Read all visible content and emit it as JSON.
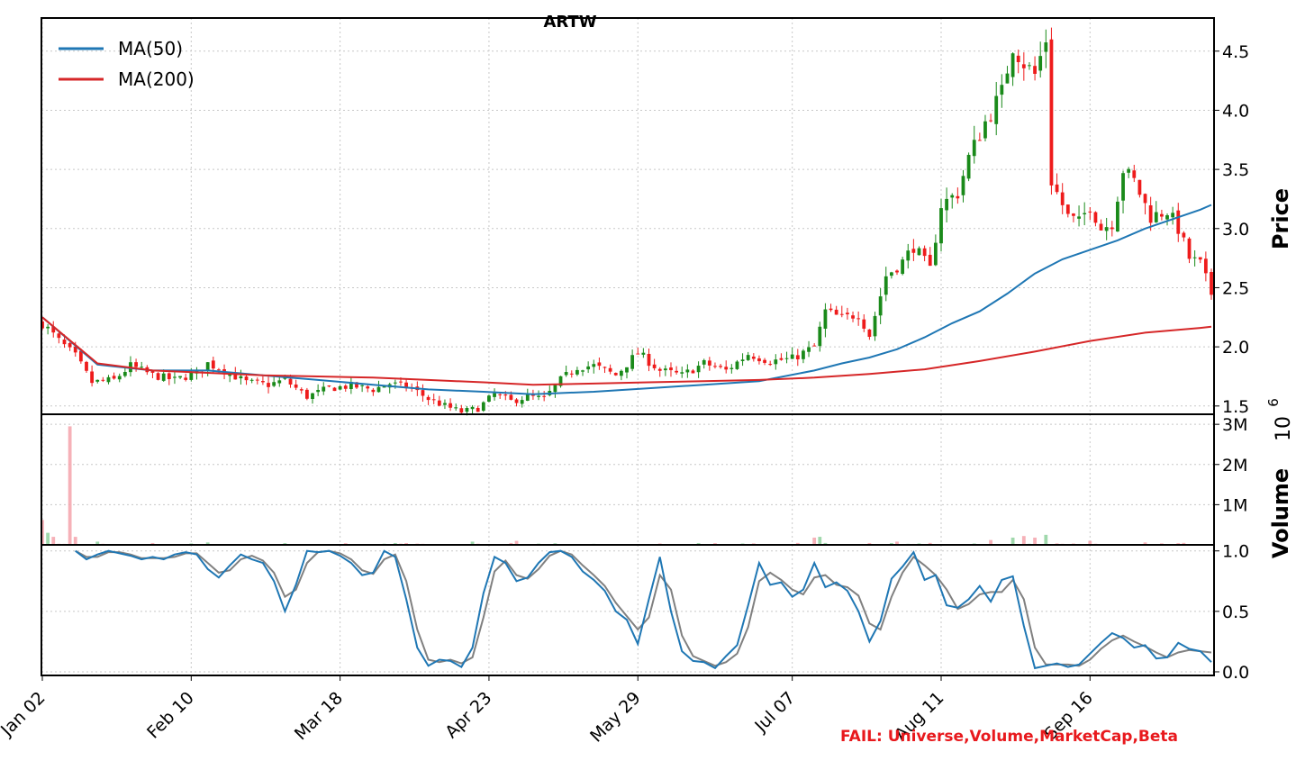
{
  "chart_data": {
    "title": "ARTW",
    "type": "candlestick",
    "x_ticks": [
      "Jan 02",
      "Feb 10",
      "Mar 18",
      "Apr 23",
      "May 29",
      "Jul 07",
      "Aug 11",
      "Sep 16"
    ],
    "price_panel": {
      "ylabel": "Price",
      "ylim": [
        1.43,
        4.78
      ],
      "y_ticks": [
        "1.5",
        "2.0",
        "2.5",
        "3.0",
        "3.5",
        "4.0",
        "4.5"
      ],
      "legend": [
        {
          "label": "MA(50)",
          "color": "#1f77b4"
        },
        {
          "label": "MA(200)",
          "color": "#d62728"
        }
      ],
      "legend_position": "top-left",
      "colors": {
        "up": "#1a8a1a",
        "down": "#ee1b1b"
      },
      "close_anchors": [
        [
          0,
          2.2
        ],
        [
          3,
          2.05
        ],
        [
          6,
          1.92
        ],
        [
          9,
          1.7
        ],
        [
          13,
          1.72
        ],
        [
          16,
          1.84
        ],
        [
          20,
          1.76
        ],
        [
          24,
          1.72
        ],
        [
          28,
          1.78
        ],
        [
          30,
          1.86
        ],
        [
          33,
          1.8
        ],
        [
          37,
          1.7
        ],
        [
          41,
          1.68
        ],
        [
          44,
          1.72
        ],
        [
          48,
          1.58
        ],
        [
          52,
          1.65
        ],
        [
          56,
          1.67
        ],
        [
          60,
          1.64
        ],
        [
          63,
          1.69
        ],
        [
          67,
          1.65
        ],
        [
          70,
          1.56
        ],
        [
          73,
          1.5
        ],
        [
          76,
          1.45
        ],
        [
          79,
          1.48
        ],
        [
          82,
          1.6
        ],
        [
          85,
          1.54
        ],
        [
          88,
          1.58
        ],
        [
          91,
          1.56
        ],
        [
          94,
          1.72
        ],
        [
          97,
          1.83
        ],
        [
          100,
          1.84
        ],
        [
          104,
          1.76
        ],
        [
          108,
          1.95
        ],
        [
          112,
          1.8
        ],
        [
          116,
          1.76
        ],
        [
          120,
          1.86
        ],
        [
          124,
          1.8
        ],
        [
          128,
          1.94
        ],
        [
          132,
          1.88
        ],
        [
          136,
          1.9
        ],
        [
          140,
          2.0
        ],
        [
          142,
          2.3
        ],
        [
          145,
          2.24
        ],
        [
          148,
          2.28
        ],
        [
          150,
          2.1
        ],
        [
          153,
          2.6
        ],
        [
          156,
          2.72
        ],
        [
          158,
          2.85
        ],
        [
          161,
          2.65
        ],
        [
          163,
          3.2
        ],
        [
          166,
          3.3
        ],
        [
          168,
          3.6
        ],
        [
          171,
          3.9
        ],
        [
          174,
          4.15
        ],
        [
          176,
          4.55
        ],
        [
          178,
          4.4
        ],
        [
          180,
          4.3
        ],
        [
          182,
          4.6
        ],
        [
          183,
          3.4
        ],
        [
          186,
          3.1
        ],
        [
          188,
          3.05
        ],
        [
          190,
          3.2
        ],
        [
          192,
          3.0
        ],
        [
          194,
          3.05
        ],
        [
          196,
          3.5
        ],
        [
          198,
          3.4
        ],
        [
          201,
          3.1
        ],
        [
          204,
          3.15
        ],
        [
          206,
          3.0
        ],
        [
          208,
          2.75
        ],
        [
          210,
          2.7
        ],
        [
          212,
          2.45
        ]
      ],
      "ma50": [
        [
          0,
          2.25
        ],
        [
          10,
          1.85
        ],
        [
          20,
          1.8
        ],
        [
          30,
          1.8
        ],
        [
          40,
          1.76
        ],
        [
          50,
          1.72
        ],
        [
          60,
          1.68
        ],
        [
          70,
          1.64
        ],
        [
          80,
          1.62
        ],
        [
          89,
          1.6
        ],
        [
          100,
          1.62
        ],
        [
          110,
          1.65
        ],
        [
          120,
          1.68
        ],
        [
          130,
          1.71
        ],
        [
          140,
          1.8
        ],
        [
          145,
          1.86
        ],
        [
          150,
          1.91
        ],
        [
          155,
          1.98
        ],
        [
          160,
          2.08
        ],
        [
          165,
          2.2
        ],
        [
          170,
          2.3
        ],
        [
          175,
          2.45
        ],
        [
          180,
          2.62
        ],
        [
          185,
          2.74
        ],
        [
          190,
          2.82
        ],
        [
          195,
          2.9
        ],
        [
          200,
          3.0
        ],
        [
          205,
          3.08
        ],
        [
          210,
          3.16
        ],
        [
          212,
          3.2
        ]
      ],
      "ma200": [
        [
          0,
          2.25
        ],
        [
          10,
          1.86
        ],
        [
          20,
          1.8
        ],
        [
          30,
          1.78
        ],
        [
          40,
          1.76
        ],
        [
          50,
          1.75
        ],
        [
          60,
          1.74
        ],
        [
          70,
          1.72
        ],
        [
          80,
          1.7
        ],
        [
          89,
          1.68
        ],
        [
          100,
          1.69
        ],
        [
          110,
          1.7
        ],
        [
          120,
          1.71
        ],
        [
          130,
          1.72
        ],
        [
          140,
          1.74
        ],
        [
          150,
          1.77
        ],
        [
          160,
          1.81
        ],
        [
          170,
          1.88
        ],
        [
          180,
          1.96
        ],
        [
          190,
          2.05
        ],
        [
          200,
          2.12
        ],
        [
          210,
          2.16
        ],
        [
          212,
          2.17
        ]
      ]
    },
    "volume_panel": {
      "ylabel": "Volume",
      "scale_label": "10",
      "scale_exponent": "6",
      "ylim": [
        0,
        3.25
      ],
      "y_ticks": [
        "1M",
        "2M",
        "3M"
      ],
      "spikes": [
        [
          0,
          0.62
        ],
        [
          1,
          0.3
        ],
        [
          2,
          0.2
        ],
        [
          5,
          2.95
        ],
        [
          6,
          0.2
        ],
        [
          10,
          0.08
        ],
        [
          30,
          0.06
        ],
        [
          78,
          0.08
        ],
        [
          86,
          0.1
        ],
        [
          140,
          0.18
        ],
        [
          141,
          0.2
        ],
        [
          155,
          0.08
        ],
        [
          172,
          0.12
        ],
        [
          176,
          0.18
        ],
        [
          178,
          0.22
        ],
        [
          180,
          0.18
        ],
        [
          182,
          0.25
        ],
        [
          190,
          0.1
        ],
        [
          200,
          0.06
        ]
      ]
    },
    "oscillator_panel": {
      "ylim": [
        -0.03,
        1.05
      ],
      "y_ticks": [
        "0.0",
        "0.5",
        "1.0"
      ],
      "colors": {
        "fast": "#1f77b4",
        "slow": "#808080"
      },
      "fast": [
        [
          6,
          1.0
        ],
        [
          8,
          0.93
        ],
        [
          10,
          0.97
        ],
        [
          12,
          1.0
        ],
        [
          14,
          0.98
        ],
        [
          16,
          0.96
        ],
        [
          18,
          0.93
        ],
        [
          20,
          0.95
        ],
        [
          22,
          0.93
        ],
        [
          24,
          0.97
        ],
        [
          26,
          0.99
        ],
        [
          28,
          0.97
        ],
        [
          30,
          0.85
        ],
        [
          32,
          0.78
        ],
        [
          34,
          0.88
        ],
        [
          36,
          0.97
        ],
        [
          38,
          0.93
        ],
        [
          40,
          0.9
        ],
        [
          42,
          0.75
        ],
        [
          44,
          0.5
        ],
        [
          46,
          0.72
        ],
        [
          48,
          1.0
        ],
        [
          50,
          0.99
        ],
        [
          52,
          1.0
        ],
        [
          54,
          0.96
        ],
        [
          56,
          0.9
        ],
        [
          58,
          0.8
        ],
        [
          60,
          0.82
        ],
        [
          62,
          1.0
        ],
        [
          64,
          0.95
        ],
        [
          66,
          0.6
        ],
        [
          68,
          0.2
        ],
        [
          70,
          0.05
        ],
        [
          72,
          0.1
        ],
        [
          74,
          0.09
        ],
        [
          76,
          0.04
        ],
        [
          78,
          0.2
        ],
        [
          80,
          0.65
        ],
        [
          82,
          0.95
        ],
        [
          84,
          0.9
        ],
        [
          86,
          0.75
        ],
        [
          88,
          0.78
        ],
        [
          90,
          0.9
        ],
        [
          92,
          0.99
        ],
        [
          94,
          1.0
        ],
        [
          96,
          0.95
        ],
        [
          98,
          0.83
        ],
        [
          100,
          0.76
        ],
        [
          102,
          0.67
        ],
        [
          104,
          0.5
        ],
        [
          106,
          0.43
        ],
        [
          108,
          0.23
        ],
        [
          110,
          0.6
        ],
        [
          112,
          0.95
        ],
        [
          114,
          0.5
        ],
        [
          116,
          0.17
        ],
        [
          118,
          0.09
        ],
        [
          120,
          0.08
        ],
        [
          122,
          0.03
        ],
        [
          124,
          0.13
        ],
        [
          126,
          0.22
        ],
        [
          128,
          0.55
        ],
        [
          130,
          0.9
        ],
        [
          132,
          0.72
        ],
        [
          134,
          0.74
        ],
        [
          136,
          0.62
        ],
        [
          138,
          0.68
        ],
        [
          140,
          0.9
        ],
        [
          142,
          0.7
        ],
        [
          144,
          0.74
        ],
        [
          146,
          0.67
        ],
        [
          148,
          0.5
        ],
        [
          150,
          0.25
        ],
        [
          152,
          0.42
        ],
        [
          154,
          0.77
        ],
        [
          156,
          0.87
        ],
        [
          158,
          0.99
        ],
        [
          160,
          0.76
        ],
        [
          162,
          0.8
        ],
        [
          164,
          0.55
        ],
        [
          166,
          0.53
        ],
        [
          168,
          0.6
        ],
        [
          170,
          0.71
        ],
        [
          172,
          0.58
        ],
        [
          174,
          0.76
        ],
        [
          176,
          0.79
        ],
        [
          178,
          0.38
        ],
        [
          180,
          0.03
        ],
        [
          182,
          0.05
        ],
        [
          184,
          0.07
        ],
        [
          186,
          0.04
        ],
        [
          188,
          0.06
        ],
        [
          190,
          0.15
        ],
        [
          192,
          0.24
        ],
        [
          194,
          0.32
        ],
        [
          196,
          0.28
        ],
        [
          198,
          0.2
        ],
        [
          200,
          0.22
        ],
        [
          202,
          0.11
        ],
        [
          204,
          0.12
        ],
        [
          206,
          0.24
        ],
        [
          208,
          0.19
        ],
        [
          210,
          0.17
        ],
        [
          212,
          0.08
        ]
      ],
      "slow": [
        [
          6,
          1.0
        ],
        [
          8,
          0.95
        ],
        [
          10,
          0.95
        ],
        [
          12,
          0.99
        ],
        [
          14,
          0.99
        ],
        [
          16,
          0.97
        ],
        [
          18,
          0.94
        ],
        [
          20,
          0.94
        ],
        [
          22,
          0.94
        ],
        [
          24,
          0.95
        ],
        [
          26,
          0.98
        ],
        [
          28,
          0.98
        ],
        [
          30,
          0.9
        ],
        [
          32,
          0.82
        ],
        [
          34,
          0.84
        ],
        [
          36,
          0.93
        ],
        [
          38,
          0.96
        ],
        [
          40,
          0.92
        ],
        [
          42,
          0.82
        ],
        [
          44,
          0.62
        ],
        [
          46,
          0.68
        ],
        [
          48,
          0.9
        ],
        [
          50,
          0.99
        ],
        [
          52,
          1.0
        ],
        [
          54,
          0.98
        ],
        [
          56,
          0.93
        ],
        [
          58,
          0.84
        ],
        [
          60,
          0.81
        ],
        [
          62,
          0.93
        ],
        [
          64,
          0.97
        ],
        [
          66,
          0.75
        ],
        [
          68,
          0.35
        ],
        [
          70,
          0.1
        ],
        [
          72,
          0.08
        ],
        [
          74,
          0.1
        ],
        [
          76,
          0.07
        ],
        [
          78,
          0.12
        ],
        [
          80,
          0.45
        ],
        [
          82,
          0.83
        ],
        [
          84,
          0.92
        ],
        [
          86,
          0.8
        ],
        [
          88,
          0.77
        ],
        [
          90,
          0.85
        ],
        [
          92,
          0.96
        ],
        [
          94,
          1.0
        ],
        [
          96,
          0.97
        ],
        [
          98,
          0.88
        ],
        [
          100,
          0.8
        ],
        [
          102,
          0.71
        ],
        [
          104,
          0.57
        ],
        [
          106,
          0.46
        ],
        [
          108,
          0.35
        ],
        [
          110,
          0.45
        ],
        [
          112,
          0.8
        ],
        [
          114,
          0.68
        ],
        [
          116,
          0.3
        ],
        [
          118,
          0.13
        ],
        [
          120,
          0.09
        ],
        [
          122,
          0.05
        ],
        [
          124,
          0.08
        ],
        [
          126,
          0.15
        ],
        [
          128,
          0.37
        ],
        [
          130,
          0.75
        ],
        [
          132,
          0.82
        ],
        [
          134,
          0.76
        ],
        [
          136,
          0.68
        ],
        [
          138,
          0.64
        ],
        [
          140,
          0.78
        ],
        [
          142,
          0.8
        ],
        [
          144,
          0.72
        ],
        [
          146,
          0.7
        ],
        [
          148,
          0.63
        ],
        [
          150,
          0.4
        ],
        [
          152,
          0.35
        ],
        [
          154,
          0.62
        ],
        [
          156,
          0.82
        ],
        [
          158,
          0.95
        ],
        [
          160,
          0.88
        ],
        [
          162,
          0.8
        ],
        [
          164,
          0.68
        ],
        [
          166,
          0.52
        ],
        [
          168,
          0.56
        ],
        [
          170,
          0.64
        ],
        [
          172,
          0.66
        ],
        [
          174,
          0.66
        ],
        [
          176,
          0.76
        ],
        [
          178,
          0.6
        ],
        [
          180,
          0.2
        ],
        [
          182,
          0.06
        ],
        [
          184,
          0.06
        ],
        [
          186,
          0.06
        ],
        [
          188,
          0.05
        ],
        [
          190,
          0.1
        ],
        [
          192,
          0.19
        ],
        [
          194,
          0.26
        ],
        [
          196,
          0.3
        ],
        [
          198,
          0.25
        ],
        [
          200,
          0.21
        ],
        [
          202,
          0.16
        ],
        [
          204,
          0.12
        ],
        [
          206,
          0.16
        ],
        [
          208,
          0.18
        ],
        [
          210,
          0.17
        ],
        [
          212,
          0.16
        ]
      ]
    },
    "footer_note": "FAIL: Universe,Volume,MarketCap,Beta"
  }
}
